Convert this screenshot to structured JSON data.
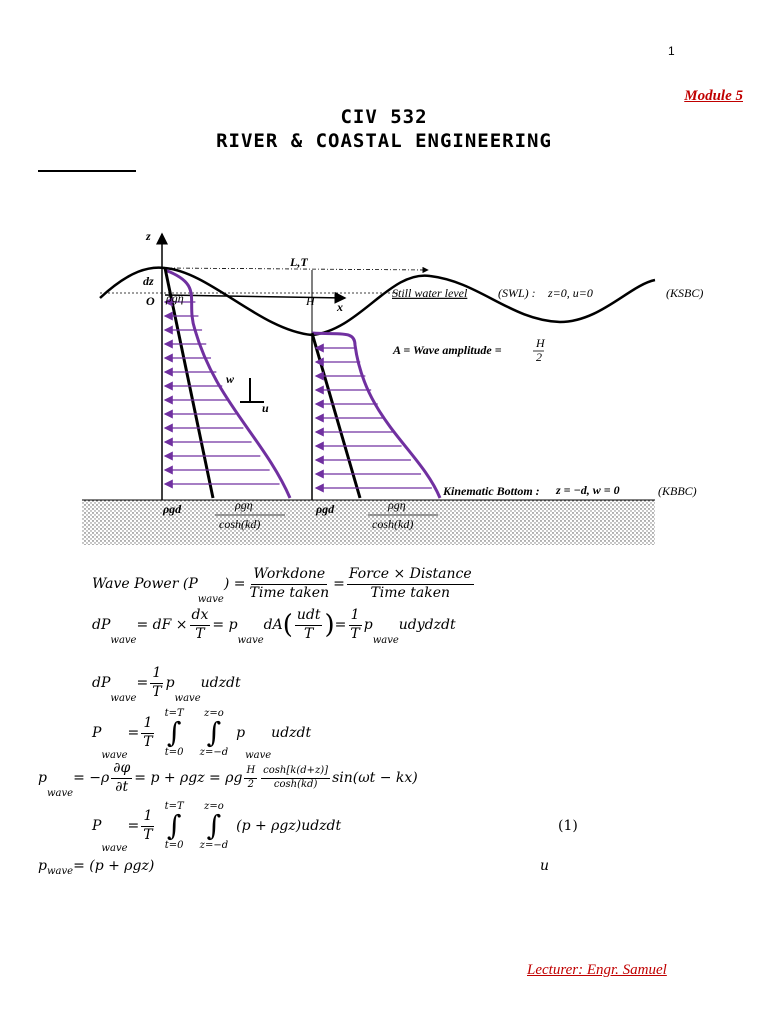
{
  "page_number": "1",
  "module": "Module 5",
  "title": [
    "CIV 532",
    "RIVER & COASTAL ENGINEERING"
  ],
  "figure": {
    "z_axis": "z",
    "x_axis": "x",
    "origin": "O",
    "wavelength_period": "L,T",
    "height": "H",
    "dz": "dz",
    "surface_pressure": "ρgη",
    "swl": "Still water level",
    "swl_abbr": "(SWL) :",
    "swl_condition": "z=0, u=0",
    "ksbc": "(KSBC)",
    "amplitude": "A = Wave amplitude =",
    "amplitude_num": "H",
    "amplitude_den": "2",
    "w": "w",
    "u": "u",
    "bottom": "Kinematic Bottom :",
    "bottom_condition": "z = −d, w = 0",
    "kbbc": "(KBBC)",
    "crest_hydrostatic": "ρgd",
    "crest_dynamic_num": "ρgη",
    "crest_dynamic_den": "cosh(kd)",
    "trough_hydrostatic": "ρgd",
    "trough_dynamic_num": "ρgη",
    "trough_dynamic_den": "cosh(kd)"
  },
  "equations": [
    [
      {
        "t": "Wave Power (P"
      },
      {
        "sub": "wave"
      },
      {
        "t": ") = "
      },
      {
        "frac": [
          "Workdone",
          "Time taken"
        ]
      },
      {
        "t": " = "
      },
      {
        "frac": [
          "Force × Distance",
          "Time taken"
        ]
      }
    ],
    [
      {
        "t": "dP"
      },
      {
        "sub": "wave"
      },
      {
        "t": " = dF × "
      },
      {
        "frac": [
          "dx",
          "T"
        ]
      },
      {
        "t": " = p"
      },
      {
        "sub": "wave"
      },
      {
        "t": "dA"
      },
      {
        "big": "("
      },
      {
        "frac": [
          "udt",
          "T"
        ]
      },
      {
        "big": ")"
      },
      {
        "t": " = "
      },
      {
        "frac": [
          "1",
          "T"
        ]
      },
      {
        "t": "p"
      },
      {
        "sub": "wave"
      },
      {
        "t": "udydzdt"
      }
    ],
    [
      {
        "t": "dP"
      },
      {
        "sub": "wave"
      },
      {
        "t": " = "
      },
      {
        "frac": [
          "1",
          "T"
        ]
      },
      {
        "t": "p"
      },
      {
        "sub": "wave"
      },
      {
        "t": "udzdt"
      }
    ],
    [
      {
        "t": "P"
      },
      {
        "sub": "wave"
      },
      {
        "t": " = "
      },
      {
        "frac": [
          "1",
          "T"
        ]
      },
      {
        "int": "∫",
        "top": "t=T",
        "bot": "t=0"
      },
      {
        "int": "∫",
        "top": "z=o",
        "bot": "z=−d"
      },
      {
        "t": "p"
      },
      {
        "sub": "wave"
      },
      {
        "t": "udzdt"
      }
    ],
    [
      {
        "t": "p"
      },
      {
        "sub": "wave"
      },
      {
        "t": " = −ρ"
      },
      {
        "frac": [
          "∂φ",
          "∂t"
        ]
      },
      {
        "t": " = p + ρgz = ρg"
      },
      {
        "frac": [
          "H",
          "2"
        ]
      },
      {
        "frac": [
          "cosh[k(d+z)]",
          "cosh(kd)"
        ]
      },
      {
        "t": "sin(ωt − kx)"
      }
    ],
    [
      {
        "t": "P"
      },
      {
        "sub": "wave"
      },
      {
        "t": " = "
      },
      {
        "frac": [
          "1",
          "T"
        ]
      },
      {
        "int": "∫",
        "top": "t=T",
        "bot": "t=0"
      },
      {
        "int": "∫",
        "top": "z=o",
        "bot": "z=−d"
      },
      {
        "t": "(p + ρgz)udzdt"
      }
    ],
    [
      {
        "t": "p"
      },
      {
        "sub": "wave"
      },
      {
        "t": " = (p + ρgz)"
      }
    ]
  ],
  "equation_number": "(1)",
  "trailing_symbol": "u",
  "footer": "Lecturer: Engr. Samuel"
}
